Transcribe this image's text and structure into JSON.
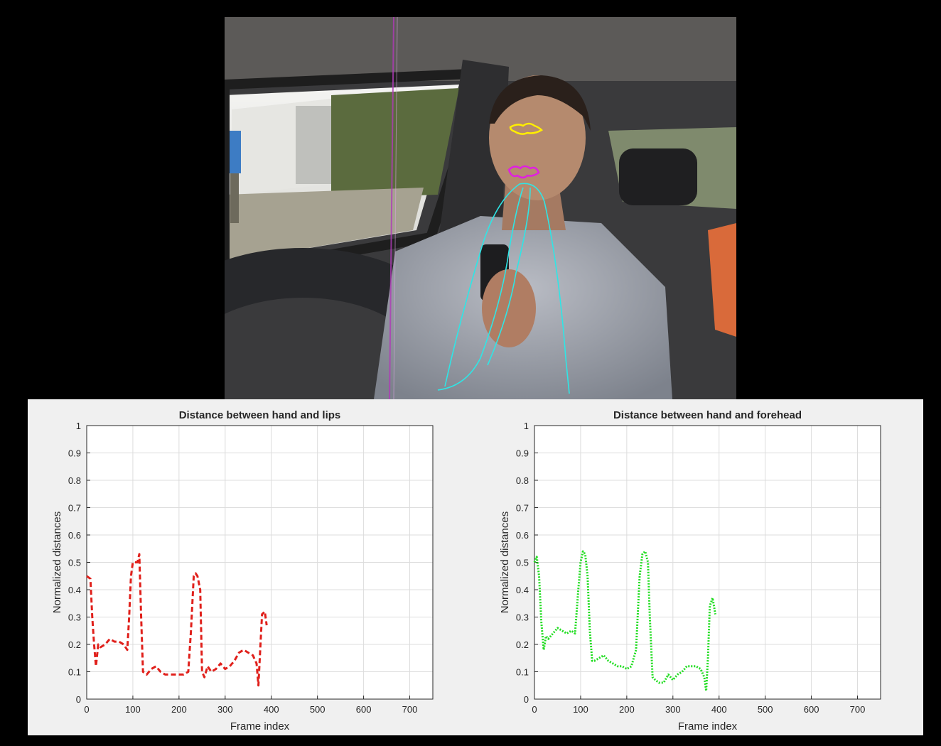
{
  "colors": {
    "lips_series": "#e0201b",
    "forehead_series": "#22dd22",
    "hand_trajectory": "#2ee6e6",
    "lips_marker": "#e020e0",
    "forehead_marker": "#ffee00"
  },
  "chart_data": [
    {
      "type": "line",
      "title": "Distance between hand and lips",
      "xlabel": "Frame index",
      "ylabel": "Normalized distances",
      "xlim": [
        0,
        750
      ],
      "ylim": [
        0,
        1
      ],
      "xticks": [
        0,
        100,
        200,
        300,
        400,
        500,
        600,
        700
      ],
      "yticks": [
        0,
        0.1,
        0.2,
        0.3,
        0.4,
        0.5,
        0.6,
        0.7,
        0.8,
        0.9,
        1
      ],
      "ytick_labels": [
        "0",
        "0.1",
        "0.2",
        "0.3",
        "0.4",
        "0.5",
        "0.6",
        "0.7",
        "0.8",
        "0.9",
        "1"
      ],
      "grid": true,
      "line_style": "dashed",
      "color": "#e0201b",
      "series": [
        {
          "x": [
            0,
            8,
            12,
            16,
            20,
            25,
            30,
            40,
            50,
            60,
            70,
            80,
            88,
            92,
            96,
            100,
            105,
            110,
            114,
            118,
            122,
            130,
            140,
            150,
            160,
            170,
            180,
            190,
            200,
            210,
            220,
            226,
            232,
            236,
            240,
            246,
            250,
            255,
            262,
            270,
            280,
            290,
            300,
            310,
            320,
            330,
            340,
            350,
            360,
            368,
            372,
            376,
            380,
            386,
            390
          ],
          "y": [
            0.45,
            0.44,
            0.3,
            0.2,
            0.12,
            0.2,
            0.19,
            0.2,
            0.22,
            0.21,
            0.21,
            0.2,
            0.18,
            0.3,
            0.45,
            0.5,
            0.5,
            0.5,
            0.53,
            0.3,
            0.1,
            0.09,
            0.11,
            0.12,
            0.1,
            0.09,
            0.09,
            0.09,
            0.09,
            0.09,
            0.1,
            0.25,
            0.45,
            0.46,
            0.45,
            0.4,
            0.1,
            0.08,
            0.12,
            0.1,
            0.11,
            0.13,
            0.11,
            0.12,
            0.14,
            0.17,
            0.18,
            0.17,
            0.16,
            0.13,
            0.05,
            0.18,
            0.31,
            0.32,
            0.27
          ]
        }
      ]
    },
    {
      "type": "line",
      "title": "Distance between hand and forehead",
      "xlabel": "Frame index",
      "ylabel": "Normalized distances",
      "xlim": [
        0,
        750
      ],
      "ylim": [
        0,
        1
      ],
      "xticks": [
        0,
        100,
        200,
        300,
        400,
        500,
        600,
        700
      ],
      "yticks": [
        0,
        0.1,
        0.2,
        0.3,
        0.4,
        0.5,
        0.6,
        0.7,
        0.8,
        0.9,
        1
      ],
      "ytick_labels": [
        "0",
        "0.1",
        "0.2",
        "0.3",
        "0.4",
        "0.5",
        "0.6",
        "0.7",
        "0.8",
        "0.9",
        "1"
      ],
      "grid": true,
      "line_style": "dotted",
      "color": "#22dd22",
      "series": [
        {
          "x": [
            0,
            5,
            10,
            15,
            20,
            25,
            30,
            40,
            50,
            60,
            70,
            80,
            88,
            95,
            100,
            105,
            110,
            115,
            120,
            125,
            130,
            140,
            150,
            160,
            170,
            180,
            190,
            200,
            210,
            220,
            228,
            234,
            240,
            246,
            250,
            256,
            262,
            270,
            280,
            290,
            295,
            300,
            310,
            320,
            330,
            340,
            350,
            360,
            368,
            372,
            376,
            380,
            386,
            392
          ],
          "y": [
            0.5,
            0.52,
            0.45,
            0.28,
            0.18,
            0.23,
            0.22,
            0.24,
            0.26,
            0.25,
            0.24,
            0.25,
            0.24,
            0.4,
            0.5,
            0.54,
            0.53,
            0.45,
            0.25,
            0.14,
            0.14,
            0.15,
            0.16,
            0.14,
            0.13,
            0.12,
            0.12,
            0.11,
            0.12,
            0.18,
            0.45,
            0.53,
            0.54,
            0.5,
            0.3,
            0.08,
            0.07,
            0.06,
            0.06,
            0.09,
            0.08,
            0.07,
            0.09,
            0.1,
            0.12,
            0.12,
            0.12,
            0.11,
            0.08,
            0.03,
            0.15,
            0.34,
            0.37,
            0.31
          ]
        }
      ]
    }
  ]
}
